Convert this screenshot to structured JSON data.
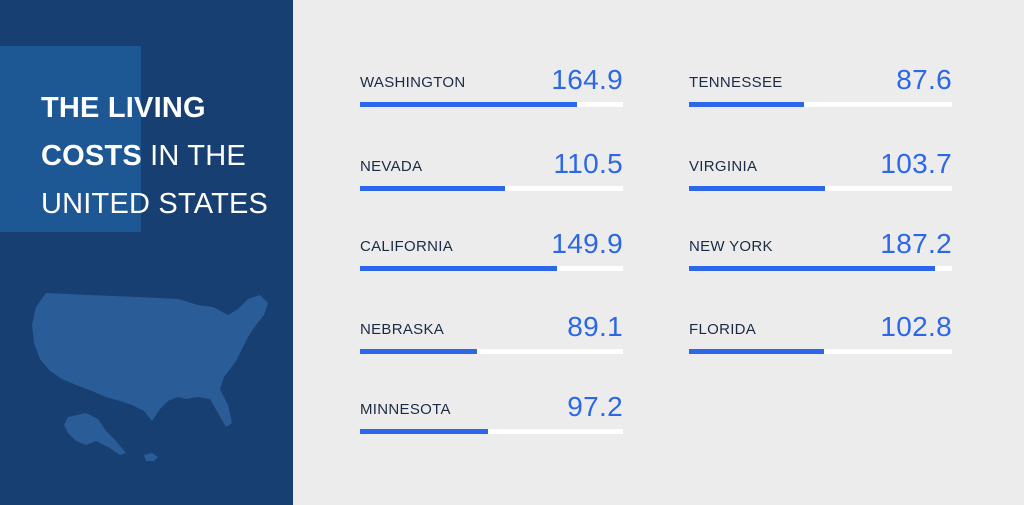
{
  "title": {
    "line1_bold": "THE LIVING",
    "line2_bold": "COSTS",
    "line2_normal": " IN THE",
    "line3_normal": "UNITED STATES"
  },
  "colors": {
    "left_panel": "#173f71",
    "left_accent": "#1d5894",
    "map": "#2a5c97",
    "accent_blue": "#2b67e8",
    "track": "#ffffff",
    "label_text": "#1b2b45"
  },
  "chart_data": {
    "type": "bar",
    "title": "THE LIVING COSTS IN THE UNITED STATES",
    "scale_max": 200,
    "categories": [
      "WASHINGTON",
      "NEVADA",
      "CALIFORNIA",
      "NEBRASKA",
      "MINNESOTA",
      "TENNESSEE",
      "VIRGINIA",
      "NEW YORK",
      "FLORIDA"
    ],
    "values": [
      164.9,
      110.5,
      149.9,
      89.1,
      97.2,
      87.6,
      103.7,
      187.2,
      102.8
    ],
    "value_labels": [
      "164.9",
      "110.5",
      "149.9",
      "89.1",
      "97.2",
      "87.6",
      "103.7",
      "187.2",
      "102.8"
    ]
  }
}
